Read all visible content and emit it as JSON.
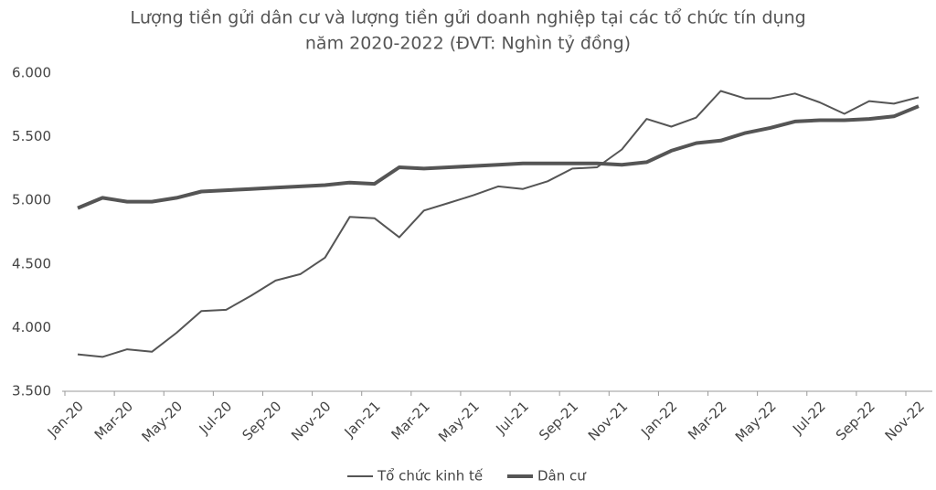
{
  "chart_data": {
    "type": "line",
    "title": "Lượng tiền gửi dân cư và lượng tiền gửi doanh nghiệp tại các tổ chức tín dụng",
    "subtitle": "năm 2020-2022 (ĐVT: Nghìn tỷ đồng)",
    "categories": [
      "Jan-20",
      null,
      "Mar-20",
      null,
      "May-20",
      null,
      "Jul-20",
      null,
      "Sep-20",
      null,
      "Nov-20",
      null,
      "Jan-21",
      null,
      "Mar-21",
      null,
      "May-21",
      null,
      "Jul-21",
      null,
      "Sep-21",
      null,
      "Nov-21",
      null,
      "Jan-22",
      null,
      "Mar-22",
      null,
      "May-22",
      null,
      "Jul-22",
      null,
      "Sep-22",
      null,
      "Nov-22"
    ],
    "series": [
      {
        "name": "Tổ chức kinh tế",
        "color": "#555555",
        "values": [
          3790,
          3770,
          3830,
          3810,
          3960,
          4130,
          4140,
          4250,
          4370,
          4420,
          4550,
          4870,
          4860,
          4710,
          4920,
          4980,
          5040,
          5110,
          5090,
          5150,
          5250,
          5260,
          5400,
          5640,
          5580,
          5650,
          5860,
          5800,
          5800,
          5840,
          5770,
          5680,
          5780,
          5760,
          5810
        ]
      },
      {
        "name": "Dân cư",
        "color": "#555555",
        "values": [
          4940,
          5020,
          4990,
          4990,
          5020,
          5070,
          5080,
          5090,
          5100,
          5110,
          5120,
          5140,
          5130,
          5260,
          5250,
          5260,
          5270,
          5280,
          5290,
          5290,
          5290,
          5290,
          5280,
          5300,
          5390,
          5450,
          5470,
          5530,
          5570,
          5620,
          5630,
          5630,
          5640,
          5660,
          5740
        ]
      }
    ],
    "ylim": [
      3500,
      6000
    ],
    "yticks": [
      {
        "value": 3500,
        "label": "3.500"
      },
      {
        "value": 4000,
        "label": "4.000"
      },
      {
        "value": 4500,
        "label": "4.500"
      },
      {
        "value": 5000,
        "label": "5.000"
      },
      {
        "value": 5500,
        "label": "5.500"
      },
      {
        "value": 6000,
        "label": "6.000"
      }
    ],
    "legend": "bottom"
  }
}
